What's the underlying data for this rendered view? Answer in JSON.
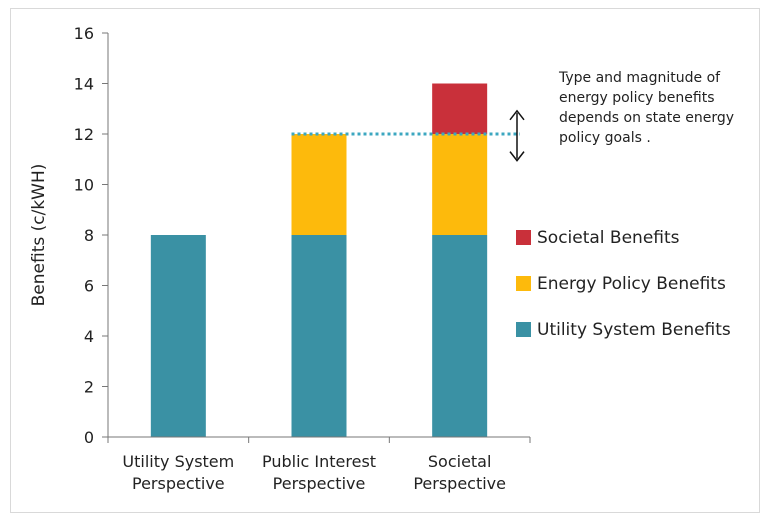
{
  "chart_data": {
    "type": "bar",
    "stacked": true,
    "categories": [
      [
        "Utility System",
        "Perspective"
      ],
      [
        "Public Interest",
        "Perspective"
      ],
      [
        "Societal",
        "Perspective"
      ]
    ],
    "series": [
      {
        "name": "Utility System Benefits",
        "color": "#3A91A4",
        "values": [
          8,
          8,
          8
        ]
      },
      {
        "name": "Energy Policy Benefits",
        "color": "#FDBA0C",
        "values": [
          0,
          4,
          4
        ]
      },
      {
        "name": "Societal Benefits",
        "color": "#C9303A",
        "values": [
          0,
          0,
          2
        ]
      }
    ],
    "legend_order": [
      "Societal Benefits",
      "Energy Policy Benefits",
      "Utility System Benefits"
    ],
    "legend_placement": "right",
    "ylabel": "Benefits (c/kWH)",
    "ylim": [
      0,
      16
    ],
    "yticks": [
      "0",
      "2",
      "4",
      "6",
      "8",
      "10",
      "12",
      "14",
      "16"
    ],
    "grid": false,
    "reference_line": {
      "y": 12,
      "style": "dotted",
      "color": "#3CA7C0"
    },
    "annotation": {
      "lines": [
        "Type and magnitude of",
        "energy policy benefits",
        "depends on state energy",
        "policy goals ."
      ],
      "arrow_range": [
        11.5,
        12.6
      ]
    }
  }
}
